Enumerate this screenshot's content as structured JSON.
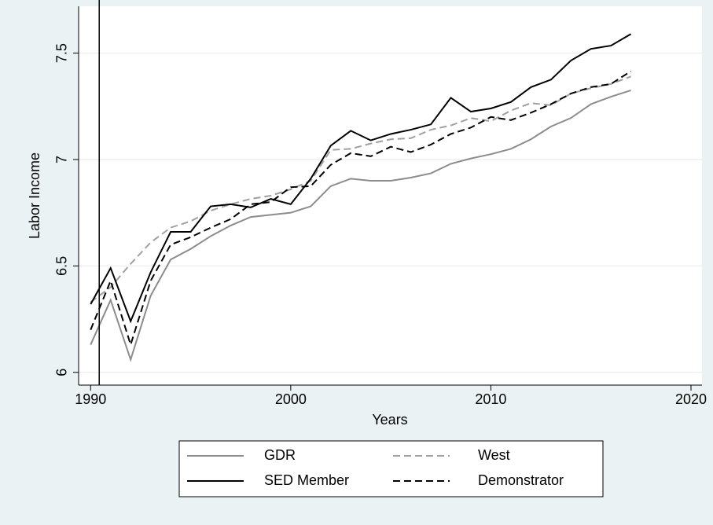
{
  "chart_data": {
    "type": "line",
    "x_label": "Years",
    "y_label": "Labor Income",
    "x": [
      1990,
      1991,
      1992,
      1993,
      1994,
      1995,
      1996,
      1997,
      1998,
      1999,
      2000,
      2001,
      2002,
      2003,
      2004,
      2005,
      2006,
      2007,
      2008,
      2009,
      2010,
      2011,
      2012,
      2013,
      2014,
      2015,
      2016,
      2017
    ],
    "series": [
      {
        "name": "GDR",
        "color": "#8c8c8c",
        "dashed": false,
        "values": [
          6.13,
          6.34,
          6.06,
          6.36,
          6.53,
          6.58,
          6.64,
          6.69,
          6.73,
          6.74,
          6.75,
          6.78,
          6.875,
          6.91,
          6.9,
          6.9,
          6.915,
          6.935,
          6.98,
          7.005,
          7.025,
          7.05,
          7.095,
          7.155,
          7.195,
          7.26,
          7.295,
          7.325
        ]
      },
      {
        "name": "West",
        "color": "#a0a0a0",
        "dashed": true,
        "values": [
          6.33,
          6.4,
          6.51,
          6.61,
          6.68,
          6.71,
          6.76,
          6.79,
          6.815,
          6.83,
          6.86,
          6.9,
          7.045,
          7.05,
          7.075,
          7.095,
          7.1,
          7.14,
          7.16,
          7.195,
          7.18,
          7.23,
          7.265,
          7.255,
          7.31,
          7.335,
          7.355,
          7.39
        ]
      },
      {
        "name": "SED Member",
        "color": "#000000",
        "dashed": false,
        "values": [
          6.32,
          6.49,
          6.24,
          6.47,
          6.66,
          6.66,
          6.78,
          6.79,
          6.775,
          6.815,
          6.79,
          6.91,
          7.065,
          7.135,
          7.09,
          7.12,
          7.14,
          7.165,
          7.29,
          7.225,
          7.24,
          7.27,
          7.34,
          7.375,
          7.465,
          7.52,
          7.535,
          7.59
        ]
      },
      {
        "name": "Demonstrator",
        "color": "#000000",
        "dashed": true,
        "values": [
          6.2,
          6.43,
          6.13,
          6.43,
          6.6,
          6.635,
          6.68,
          6.72,
          6.79,
          6.8,
          6.87,
          6.875,
          6.975,
          7.03,
          7.015,
          7.06,
          7.035,
          7.07,
          7.12,
          7.15,
          7.2,
          7.185,
          7.22,
          7.26,
          7.31,
          7.34,
          7.355,
          7.415
        ]
      }
    ],
    "xline": 1990.43,
    "xlim": [
      1989.4,
      2020.55
    ],
    "xticks": [
      1990,
      2000,
      2010,
      2020
    ],
    "ylim": [
      5.94,
      7.72
    ],
    "yticks": [
      6,
      6.5,
      7,
      7.5
    ],
    "grid": true,
    "legend": "bottom"
  }
}
